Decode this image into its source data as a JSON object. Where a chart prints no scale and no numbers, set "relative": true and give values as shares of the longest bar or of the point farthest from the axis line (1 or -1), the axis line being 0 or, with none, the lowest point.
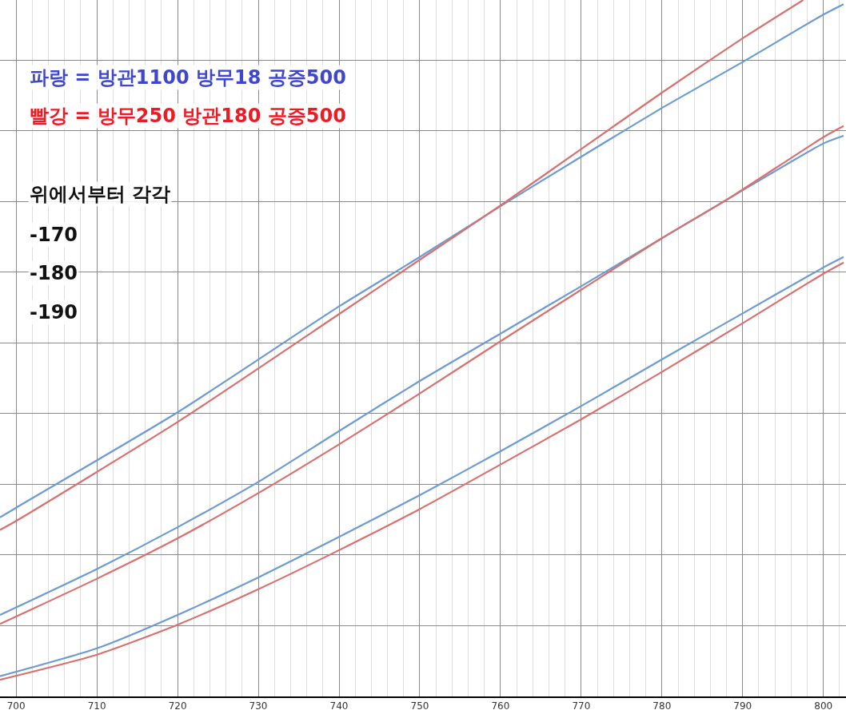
{
  "chart_data": {
    "type": "line",
    "relative": true,
    "grid": true,
    "line_style": "solid",
    "marker": "none",
    "xlim": [
      698,
      802.8
    ],
    "xticks": [
      700,
      710,
      720,
      730,
      740,
      750,
      760,
      770,
      780,
      790,
      800
    ],
    "annotations": [
      "파랑 = 방관1100 방무18 공증500",
      "빨강 = 방무250 방관180 공증500",
      "위에서부터 각각",
      "-170",
      "-180",
      "-190"
    ],
    "series": [
      {
        "color": "#6b9bd2",
        "x": [
          698,
          700,
          720,
          740,
          750,
          760,
          770,
          780,
          790,
          800,
          802.5
        ],
        "values": [
          0.257,
          0.271,
          0.408,
          0.56,
          0.631,
          0.704,
          0.775,
          0.845,
          0.911,
          0.979,
          0.994
        ]
      },
      {
        "color": "#d9706e",
        "x": [
          698,
          700,
          720,
          740,
          750,
          760,
          770,
          780,
          790,
          797.5
        ],
        "values": [
          0.239,
          0.252,
          0.394,
          0.549,
          0.627,
          0.705,
          0.786,
          0.867,
          0.945,
          1
        ]
      },
      {
        "color": "#6b9bd2",
        "x": [
          698,
          710,
          720,
          730,
          740,
          750,
          760,
          770,
          780,
          788,
          800,
          802.5
        ],
        "values": [
          0.117,
          0.183,
          0.243,
          0.308,
          0.381,
          0.453,
          0.521,
          0.589,
          0.658,
          0.713,
          0.794,
          0.805
        ]
      },
      {
        "color": "#d9706e",
        "x": [
          698,
          710,
          720,
          730,
          740,
          750,
          760,
          770,
          780,
          788,
          800,
          802.5
        ],
        "values": [
          0.104,
          0.169,
          0.227,
          0.292,
          0.362,
          0.435,
          0.51,
          0.584,
          0.658,
          0.713,
          0.803,
          0.819
        ]
      },
      {
        "color": "#6b9bd2",
        "x": [
          698,
          710,
          720,
          730,
          740,
          750,
          760,
          770,
          780,
          790,
          800,
          802.5
        ],
        "values": [
          0.029,
          0.069,
          0.117,
          0.171,
          0.229,
          0.289,
          0.352,
          0.417,
          0.484,
          0.55,
          0.616,
          0.631
        ]
      },
      {
        "color": "#d9706e",
        "x": [
          698,
          710,
          720,
          730,
          740,
          750,
          760,
          770,
          780,
          790,
          800,
          802.5
        ],
        "values": [
          0.024,
          0.06,
          0.103,
          0.154,
          0.21,
          0.269,
          0.333,
          0.398,
          0.466,
          0.536,
          0.607,
          0.623
        ]
      }
    ]
  }
}
